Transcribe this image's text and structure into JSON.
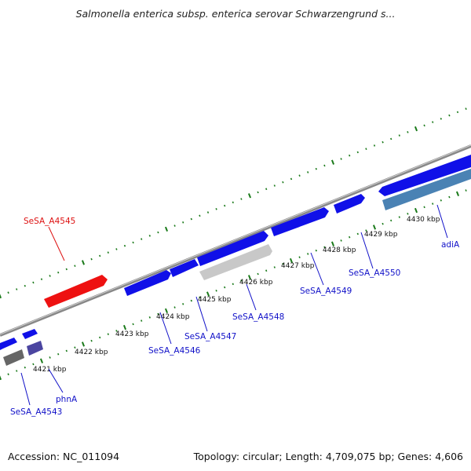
{
  "title": "Salmonella enterica subsp. enterica serovar Schwarzengrund s...",
  "footer": {
    "accession": "Accession: NC_011094",
    "summary": "Topology: circular; Length: 4,709,075 bp; Genes: 4,606"
  },
  "colors": {
    "backbone": "#888888",
    "tick": "#1a7a1a",
    "gene_forward": "#1010e8",
    "gene_highlight": "#ee1111",
    "label_default": "#1010c8",
    "label_highlight": "#dd1111",
    "gene_grey": "#c8c8c8",
    "gene_darkgrey": "#666666",
    "gene_steelblue": "#4a82b4",
    "gene_slate": "#4b45a0"
  },
  "scale_labels": [
    "4421 kbp",
    "4422 kbp",
    "4423 kbp",
    "4424 kbp",
    "4425 kbp",
    "4426 kbp",
    "4427 kbp",
    "4428 kbp",
    "4429 kbp",
    "4430 kbp"
  ],
  "genes": [
    {
      "label": "SeSA_A4543",
      "strand": "reverse",
      "color": "gene_darkgrey"
    },
    {
      "label": "phnA",
      "strand": "reverse",
      "color": "gene_slate"
    },
    {
      "label": "SeSA_A4545",
      "strand": "forward",
      "color": "gene_highlight"
    },
    {
      "label": "SeSA_A4546",
      "strand": "forward",
      "color": "gene_forward"
    },
    {
      "label": "SeSA_A4547",
      "strand": "forward",
      "color": "gene_forward"
    },
    {
      "label": "SeSA_A4548",
      "strand": "reverse",
      "color": "gene_grey"
    },
    {
      "label": "SeSA_A4549",
      "strand": "forward",
      "color": "gene_forward"
    },
    {
      "label": "SeSA_A4550",
      "strand": "forward",
      "color": "gene_forward"
    },
    {
      "label": "adiA",
      "strand": "reverse",
      "color": "gene_steelblue"
    }
  ]
}
